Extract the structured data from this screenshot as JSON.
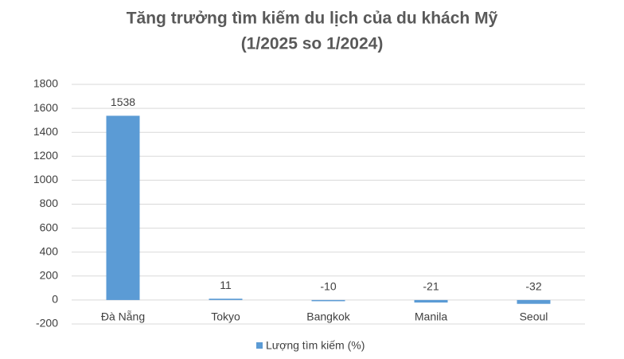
{
  "chart_data": {
    "type": "bar",
    "title": "Tăng trưởng tìm kiếm du lịch của du khách Mỹ",
    "subtitle": "(1/2025 so 1/2024)",
    "categories": [
      "Đà Nẵng",
      "Tokyo",
      "Bangkok",
      "Manila",
      "Seoul"
    ],
    "series": [
      {
        "name": "Lượng tìm kiếm (%)",
        "color": "#5b9bd5",
        "values": [
          1538,
          11,
          -10,
          -21,
          -32
        ]
      }
    ],
    "ylim": [
      -200,
      1800
    ],
    "yticks": [
      -200,
      0,
      200,
      400,
      600,
      800,
      1000,
      1200,
      1400,
      1600,
      1800
    ],
    "grid": true,
    "legend": "bottom"
  }
}
